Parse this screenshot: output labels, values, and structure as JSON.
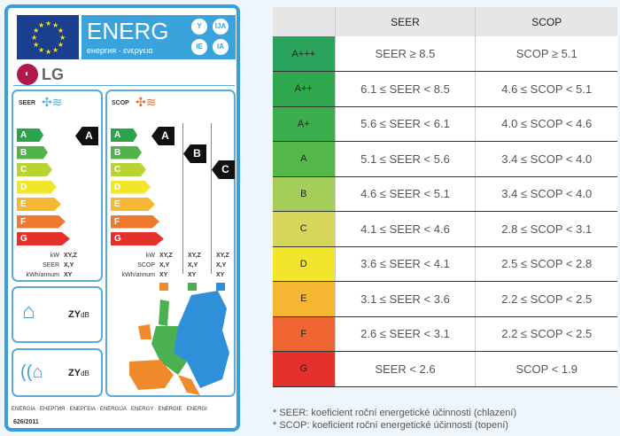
{
  "label": {
    "energy_title": "ENERG",
    "energy_subtitle": "енергия · ενεργεια",
    "lang_badges": [
      "Y",
      "IJA",
      "IE",
      "IA"
    ],
    "brand": "LG",
    "seer_title": "SEER",
    "scop_title": "SCOP",
    "classes": [
      "A",
      "B",
      "C",
      "D",
      "E",
      "F",
      "G"
    ],
    "class_colors": [
      "#2aa34a",
      "#52b448",
      "#b9d432",
      "#f2e52b",
      "#f6b832",
      "#ef7a2f",
      "#e4312b"
    ],
    "seer_rating": "A",
    "scop_ratings": [
      "A",
      "B",
      "C"
    ],
    "seer_specs": {
      "kw_label": "kW",
      "kw": "XY,Z",
      "seer_label": "SEER",
      "seer": "X,Y",
      "kwh_label": "kWh/annum",
      "kwh": "XY"
    },
    "scop_specs": {
      "kw_label": "kW",
      "scop_label": "SCOP",
      "kwh_label": "kWh/annum",
      "columns": [
        {
          "kw": "XY,Z",
          "scop": "X,Y",
          "kwh": "XY",
          "color": "#f08a2a"
        },
        {
          "kw": "XY,Z",
          "scop": "X,Y",
          "kwh": "XY",
          "color": "#4caf50"
        },
        {
          "kw": "XY,Z",
          "scop": "X,Y",
          "kwh": "XY",
          "color": "#2f8fd8"
        }
      ]
    },
    "noise_indoor": "ZY",
    "noise_outdoor": "ZY",
    "db_unit": "dB",
    "footer": "ENERGIA · ЕНЕРГИЯ · ЕΝΕΡΓΕΙΑ · ENERGIJA · ENERGY · ENERGIE · ENERGI",
    "regulation": "626/2011"
  },
  "table": {
    "headers": [
      "",
      "SEER",
      "SCOP"
    ],
    "rows": [
      {
        "cls": "A+++",
        "seer": "SEER ≥ 8.5",
        "scop": "SCOP ≥ 5.1",
        "color": "#2aa45c"
      },
      {
        "cls": "A++",
        "seer": "6.1 ≤ SEER < 8.5",
        "scop": "4.6 ≤ SCOP < 5.1",
        "color": "#2fa84f"
      },
      {
        "cls": "A+",
        "seer": "5.6 ≤ SEER < 6.1",
        "scop": "4.0 ≤ SCOP < 4.6",
        "color": "#3cad4c"
      },
      {
        "cls": "A",
        "seer": "5.1 ≤ SEER < 5.6",
        "scop": "3.4 ≤ SCOP < 4.0",
        "color": "#55b74a"
      },
      {
        "cls": "B",
        "seer": "4.6 ≤ SEER < 5.1",
        "scop": "3.4 ≤ SCOP < 4.0",
        "color": "#a4cd5a"
      },
      {
        "cls": "C",
        "seer": "4.1 ≤ SEER < 4.6",
        "scop": "2.8 ≤ SCOP < 3.1",
        "color": "#d6d65c"
      },
      {
        "cls": "D",
        "seer": "3.6 ≤ SEER < 4.1",
        "scop": "2.5 ≤ SCOP < 2.8",
        "color": "#f2e52c"
      },
      {
        "cls": "E",
        "seer": "3.1 ≤ SEER < 3.6",
        "scop": "2.2 ≤ SCOP < 2.5",
        "color": "#f6b632"
      },
      {
        "cls": "F",
        "seer": "2.6 ≤ SEER < 3.1",
        "scop": "2.2 ≤ SCOP < 2.5",
        "color": "#ee6531"
      },
      {
        "cls": "G",
        "seer": "SEER < 2.6",
        "scop": "SCOP < 1.9",
        "color": "#e4312b"
      }
    ]
  },
  "notes": [
    "* SEER: koeficient roční energetické účinnosti (chlazení)",
    "* SCOP: koeficient roční energetické účinnosti (topení)"
  ]
}
